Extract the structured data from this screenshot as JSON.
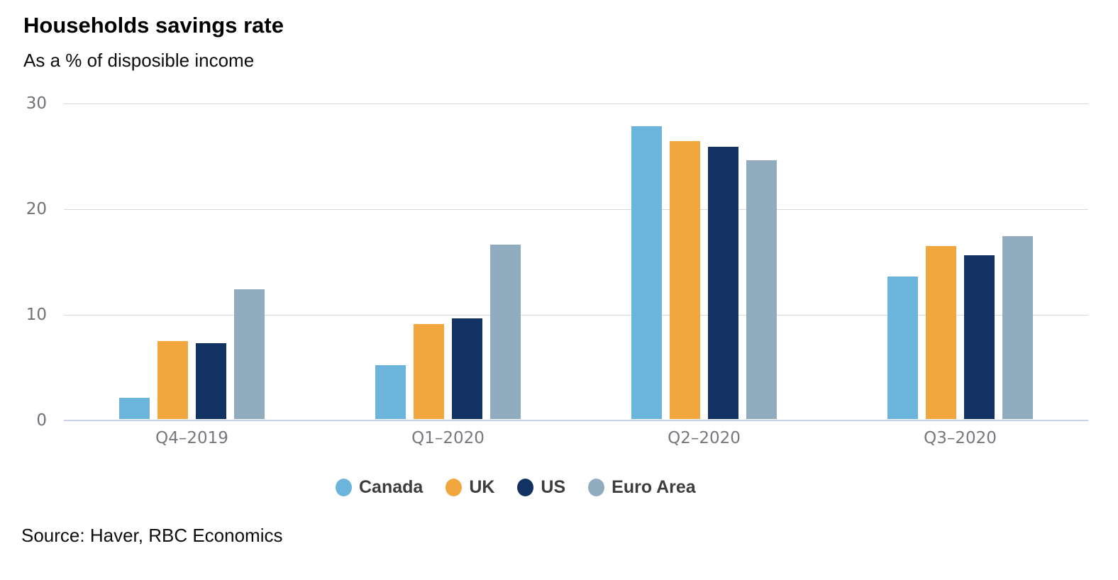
{
  "header": {
    "title": "Households savings rate",
    "subtitle": "As a % of disposible income"
  },
  "footer": {
    "source": "Source: Haver, RBC Economics"
  },
  "colors": {
    "canada": "#6bb4dc",
    "uk": "#efa73e",
    "us": "#123263",
    "euro_area": "#90acbe",
    "gridline": "#d9d9d9",
    "baseline": "#c7d1e8",
    "tick_label": "#6f7277"
  },
  "chart_data": {
    "type": "bar",
    "title": "Households savings rate",
    "subtitle": "As a % of disposible income",
    "categories": [
      "Q4–2019",
      "Q1–2020",
      "Q2–2020",
      "Q3–2020"
    ],
    "series": [
      {
        "name": "Canada",
        "color": "#6bb4dc",
        "values": [
          2.0,
          5.1,
          27.7,
          13.5
        ]
      },
      {
        "name": "UK",
        "color": "#efa73e",
        "values": [
          7.4,
          9.0,
          26.3,
          16.4
        ]
      },
      {
        "name": "US",
        "color": "#123263",
        "values": [
          7.2,
          9.5,
          25.8,
          15.5
        ]
      },
      {
        "name": "Euro Area",
        "color": "#90acbe",
        "values": [
          12.3,
          16.5,
          24.5,
          17.3
        ]
      }
    ],
    "xlabel": "",
    "ylabel": "",
    "ylim": [
      0,
      30
    ],
    "yticks": [
      0,
      10,
      20,
      30
    ],
    "grid": "horizontal",
    "legend_position": "bottom"
  }
}
